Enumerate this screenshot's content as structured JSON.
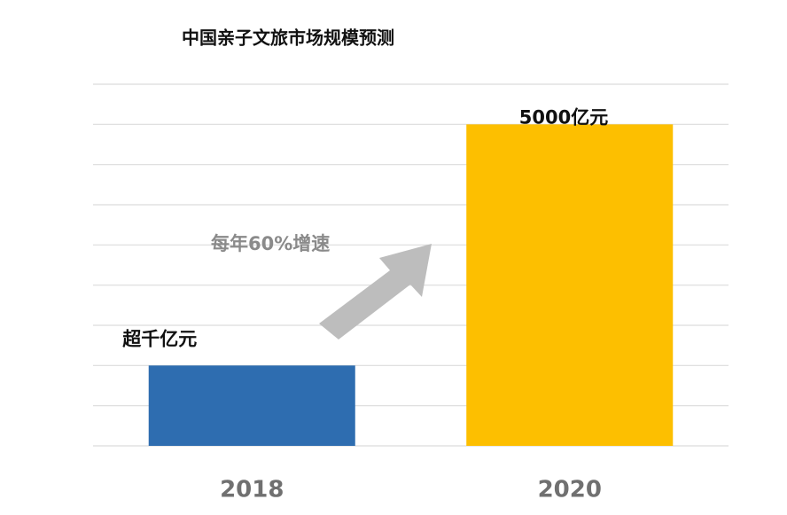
{
  "chart_data": {
    "type": "bar",
    "title": "中国亲子文旅市场规模预测",
    "categories": [
      "2018",
      "2020"
    ],
    "values": [
      1250,
      5000
    ],
    "value_labels": [
      "超千亿元",
      "5000亿元"
    ],
    "colors": [
      "#2e6db0",
      "#fdbf00"
    ],
    "ylim": [
      0,
      5625
    ],
    "yticks": [
      0,
      625,
      1250,
      1875,
      2500,
      3125,
      3750,
      4375,
      5000,
      5625
    ],
    "grid": true,
    "annotation": "每年60%增速"
  }
}
